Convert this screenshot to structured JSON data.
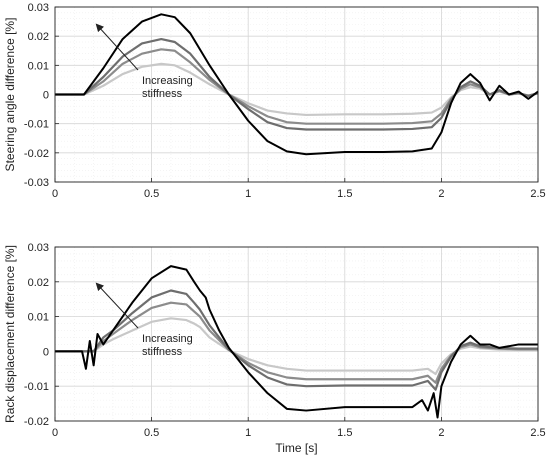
{
  "chart_data": [
    {
      "type": "line",
      "ylabel": "Steering angle difference [%]",
      "xlabel": "",
      "xlim": [
        0,
        2.5
      ],
      "ylim": [
        -0.03,
        0.03
      ],
      "xticks": [
        "0",
        "0.5",
        "1",
        "1.5",
        "2",
        "2.5"
      ],
      "yticks": [
        "-0.03",
        "-0.02",
        "-0.01",
        "0",
        "0.01",
        "0.02",
        "0.03"
      ],
      "grid": true,
      "annotation": {
        "line1": "Increasing",
        "line2": "stiffness"
      },
      "series": [
        {
          "color": "#000000",
          "x": [
            0,
            0.15,
            0.25,
            0.35,
            0.45,
            0.55,
            0.62,
            0.7,
            0.8,
            0.9,
            1.0,
            1.1,
            1.2,
            1.3,
            1.5,
            1.7,
            1.85,
            1.95,
            2.0,
            2.05,
            2.1,
            2.15,
            2.2,
            2.25,
            2.3,
            2.35,
            2.4,
            2.45,
            2.5
          ],
          "y": [
            0,
            0,
            0.009,
            0.019,
            0.025,
            0.0275,
            0.0265,
            0.021,
            0.01,
            0,
            -0.009,
            -0.016,
            -0.0195,
            -0.0205,
            -0.0197,
            -0.0197,
            -0.0195,
            -0.0185,
            -0.013,
            -0.003,
            0.004,
            0.007,
            0.004,
            -0.002,
            0.003,
            0,
            0.001,
            -0.0015,
            0.001
          ]
        },
        {
          "color": "#6e6e6e",
          "x": [
            0,
            0.15,
            0.25,
            0.35,
            0.45,
            0.55,
            0.62,
            0.7,
            0.8,
            0.9,
            1.0,
            1.1,
            1.2,
            1.3,
            1.5,
            1.7,
            1.85,
            1.95,
            2.0,
            2.05,
            2.1,
            2.15,
            2.2,
            2.25,
            2.3,
            2.35,
            2.4,
            2.45,
            2.5
          ],
          "y": [
            0,
            0,
            0.006,
            0.013,
            0.0175,
            0.019,
            0.018,
            0.014,
            0.006,
            0,
            -0.005,
            -0.0095,
            -0.0115,
            -0.012,
            -0.012,
            -0.012,
            -0.0118,
            -0.0112,
            -0.008,
            -0.002,
            0.0025,
            0.0045,
            0.003,
            0,
            0.0015,
            0,
            0.0005,
            -0.0005,
            0.0005
          ]
        },
        {
          "color": "#8c8c8c",
          "x": [
            0,
            0.15,
            0.25,
            0.35,
            0.45,
            0.55,
            0.62,
            0.7,
            0.8,
            0.9,
            1.0,
            1.1,
            1.2,
            1.3,
            1.5,
            1.7,
            1.85,
            1.95,
            2.0,
            2.05,
            2.1,
            2.15,
            2.2,
            2.25,
            2.3,
            2.35,
            2.4,
            2.45,
            2.5
          ],
          "y": [
            0,
            0,
            0.0045,
            0.0105,
            0.014,
            0.0155,
            0.015,
            0.011,
            0.005,
            0,
            -0.004,
            -0.0075,
            -0.0095,
            -0.01,
            -0.01,
            -0.01,
            -0.0098,
            -0.0092,
            -0.0065,
            -0.0015,
            0.002,
            0.0035,
            0.0025,
            0,
            0.0012,
            0,
            0.0004,
            -0.0004,
            0.0004
          ]
        },
        {
          "color": "#c8c8c8",
          "x": [
            0,
            0.15,
            0.25,
            0.35,
            0.45,
            0.55,
            0.62,
            0.7,
            0.8,
            0.9,
            1.0,
            1.1,
            1.2,
            1.3,
            1.5,
            1.7,
            1.85,
            1.95,
            2.0,
            2.05,
            2.1,
            2.15,
            2.2,
            2.25,
            2.3,
            2.35,
            2.4,
            2.45,
            2.5
          ],
          "y": [
            0,
            0,
            0.003,
            0.007,
            0.0095,
            0.0105,
            0.01,
            0.0075,
            0.0035,
            0,
            -0.003,
            -0.0055,
            -0.0065,
            -0.007,
            -0.0068,
            -0.0068,
            -0.0066,
            -0.0062,
            -0.0045,
            -0.001,
            0.0015,
            0.0025,
            0.002,
            0,
            0.001,
            0,
            0.0003,
            -0.0003,
            0.0003
          ]
        }
      ]
    },
    {
      "type": "line",
      "ylabel": "Rack displacement difference [%]",
      "xlabel": "Time [s]",
      "xlim": [
        0,
        2.5
      ],
      "ylim": [
        -0.02,
        0.03
      ],
      "xticks": [
        "0",
        "0.5",
        "1",
        "1.5",
        "2",
        "2.5"
      ],
      "yticks": [
        "-0.02",
        "-0.01",
        "0",
        "0.01",
        "0.02",
        "0.03"
      ],
      "grid": true,
      "annotation": {
        "line1": "Increasing",
        "line2": "stiffness"
      },
      "series": [
        {
          "color": "#000000",
          "x": [
            0,
            0.14,
            0.16,
            0.18,
            0.2,
            0.22,
            0.25,
            0.3,
            0.4,
            0.5,
            0.6,
            0.68,
            0.72,
            0.75,
            0.78,
            0.8,
            0.85,
            0.9,
            1.0,
            1.1,
            1.2,
            1.3,
            1.5,
            1.7,
            1.85,
            1.9,
            1.93,
            1.96,
            1.98,
            2.0,
            2.05,
            2.1,
            2.15,
            2.2,
            2.25,
            2.3,
            2.4,
            2.5
          ],
          "y": [
            0,
            0,
            -0.005,
            0.003,
            -0.004,
            0.005,
            0.002,
            0.006,
            0.014,
            0.021,
            0.0245,
            0.0235,
            0.02,
            0.0175,
            0.0155,
            0.012,
            0.006,
            0.001,
            -0.006,
            -0.012,
            -0.0165,
            -0.017,
            -0.016,
            -0.016,
            -0.016,
            -0.014,
            -0.017,
            -0.012,
            -0.019,
            -0.01,
            -0.003,
            0.002,
            0.0045,
            0.002,
            0.002,
            0.001,
            0.002,
            0.002
          ]
        },
        {
          "color": "#6e6e6e",
          "x": [
            0,
            0.2,
            0.25,
            0.3,
            0.4,
            0.5,
            0.6,
            0.68,
            0.72,
            0.75,
            0.8,
            0.9,
            1.0,
            1.1,
            1.2,
            1.3,
            1.5,
            1.7,
            1.85,
            1.93,
            1.97,
            2.0,
            2.05,
            2.1,
            2.15,
            2.2,
            2.3,
            2.4,
            2.5
          ],
          "y": [
            0,
            0,
            0.004,
            0.006,
            0.011,
            0.0155,
            0.0175,
            0.0165,
            0.014,
            0.012,
            0.0075,
            0.0005,
            -0.004,
            -0.0075,
            -0.0095,
            -0.01,
            -0.0098,
            -0.0098,
            -0.0098,
            -0.0085,
            -0.011,
            -0.006,
            -0.0015,
            0.0015,
            0.0025,
            0.0015,
            0.001,
            0.0008,
            0.0008
          ]
        },
        {
          "color": "#8c8c8c",
          "x": [
            0,
            0.2,
            0.25,
            0.3,
            0.4,
            0.5,
            0.6,
            0.68,
            0.72,
            0.75,
            0.8,
            0.9,
            1.0,
            1.1,
            1.2,
            1.3,
            1.5,
            1.7,
            1.85,
            1.93,
            1.97,
            2.0,
            2.05,
            2.1,
            2.15,
            2.2,
            2.3,
            2.4,
            2.5
          ],
          "y": [
            0,
            0,
            0.003,
            0.005,
            0.009,
            0.0125,
            0.014,
            0.0135,
            0.0115,
            0.01,
            0.006,
            0.0004,
            -0.0033,
            -0.006,
            -0.0075,
            -0.008,
            -0.008,
            -0.008,
            -0.008,
            -0.007,
            -0.009,
            -0.005,
            -0.0012,
            0.0012,
            0.002,
            0.0012,
            0.0008,
            0.0006,
            0.0006
          ]
        },
        {
          "color": "#c8c8c8",
          "x": [
            0,
            0.2,
            0.25,
            0.3,
            0.4,
            0.5,
            0.6,
            0.68,
            0.72,
            0.75,
            0.8,
            0.9,
            1.0,
            1.1,
            1.2,
            1.3,
            1.5,
            1.7,
            1.85,
            1.93,
            1.97,
            2.0,
            2.05,
            2.1,
            2.15,
            2.2,
            2.3,
            2.4,
            2.5
          ],
          "y": [
            0,
            0,
            0.002,
            0.0035,
            0.006,
            0.0085,
            0.0095,
            0.009,
            0.008,
            0.007,
            0.004,
            0.0003,
            -0.0022,
            -0.004,
            -0.005,
            -0.0055,
            -0.0055,
            -0.0055,
            -0.0055,
            -0.005,
            -0.0065,
            -0.0035,
            -0.0008,
            0.0008,
            0.0014,
            0.0009,
            0.0005,
            0.0004,
            0.0004
          ]
        }
      ]
    }
  ]
}
